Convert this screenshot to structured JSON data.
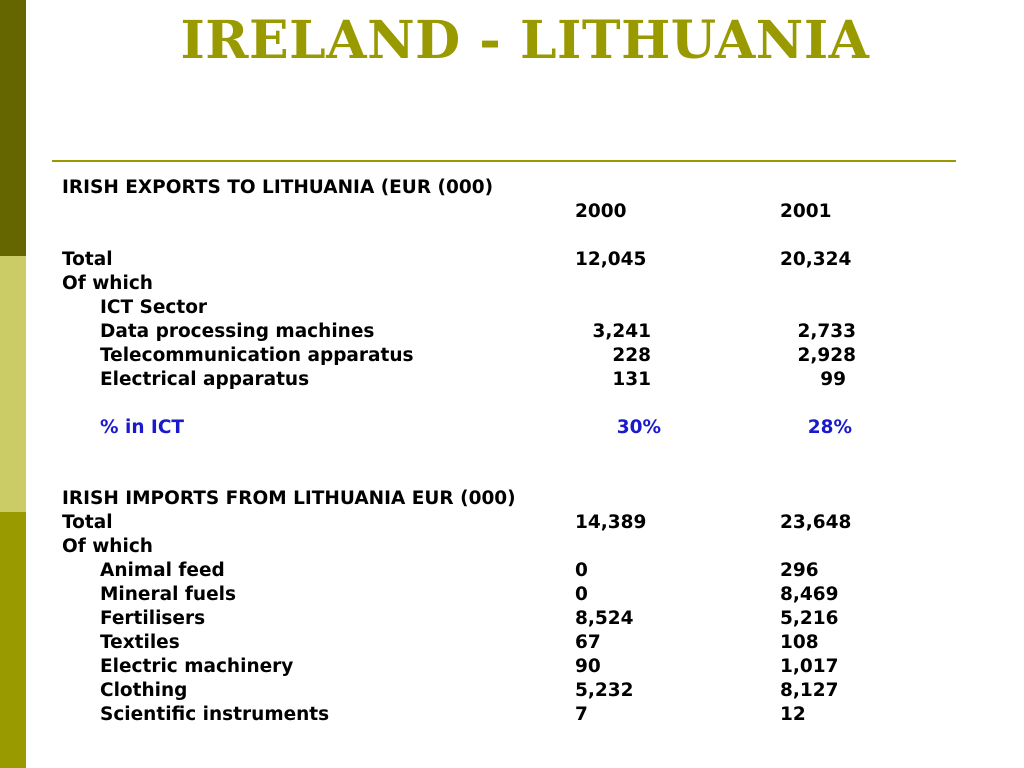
{
  "title": "IRELAND - LITHUANIA",
  "colors": {
    "title": "#999900",
    "rule": "#999900",
    "sidebar_top": "#666600",
    "sidebar_mid": "#cccc66",
    "sidebar_bottom": "#999900",
    "ict_percent": "#1a1acc"
  },
  "exports": {
    "heading": "IRISH EXPORTS TO LITHUANIA (EUR (000)",
    "years": [
      "2000",
      "2001"
    ],
    "total_label": "Total",
    "total": [
      "12,045",
      "20,324"
    ],
    "of_which": "Of which",
    "ict_sector": "ICT Sector",
    "rows": [
      {
        "label": "Data processing machines",
        "v2000": "3,241",
        "v2001": "2,733"
      },
      {
        "label": "Telecommunication apparatus",
        "v2000": "228",
        "v2001": "2,928"
      },
      {
        "label": "Electrical apparatus",
        "v2000": "131",
        "v2001": "99"
      }
    ],
    "ict_percent_label": "% in ICT",
    "ict_percent": [
      "30%",
      "28%"
    ]
  },
  "imports": {
    "heading": "IRISH IMPORTS FROM LITHUANIA EUR (000)",
    "total_label": "Total",
    "total": [
      "14,389",
      "23,648"
    ],
    "of_which": "Of which",
    "rows": [
      {
        "label": "Animal feed",
        "v2000": "0",
        "v2001": "296"
      },
      {
        "label": "Mineral fuels",
        "v2000": "0",
        "v2001": "8,469"
      },
      {
        "label": "Fertilisers",
        "v2000": "8,524",
        "v2001": "5,216"
      },
      {
        "label": "Textiles",
        "v2000": "67",
        "v2001": "108"
      },
      {
        "label": "Electric machinery",
        "v2000": "90",
        "v2001": "1,017"
      },
      {
        "label": "Clothing",
        "v2000": "5,232",
        "v2001": "8,127"
      },
      {
        "label": "Scientific instruments",
        "v2000": "7",
        "v2001": "12"
      }
    ]
  }
}
